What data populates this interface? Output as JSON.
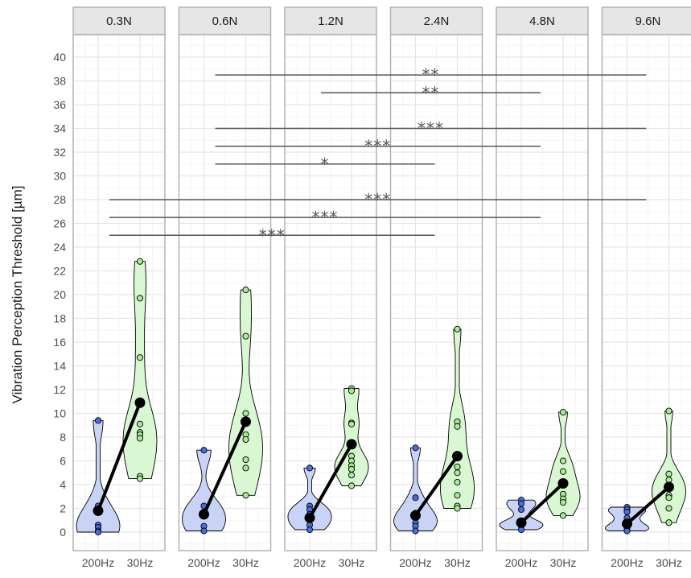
{
  "chart_data": {
    "type": "violin",
    "ylabel": "Vibration Perception Threshold [µm]",
    "ylim": [
      -1.5,
      43
    ],
    "yticks": [
      0,
      2,
      4,
      6,
      8,
      10,
      12,
      14,
      16,
      18,
      20,
      22,
      24,
      26,
      28,
      30,
      32,
      34,
      36,
      38,
      40
    ],
    "categories": [
      "200Hz",
      "30Hz"
    ],
    "grid": true,
    "colors": {
      "200Hz_fill": "#c9d3f5",
      "200Hz_point": "#4a6ee0",
      "30Hz_fill": "#d9f7d2",
      "30Hz_point": "#a6ec96",
      "mean": "#000000",
      "significance": "#555555",
      "strip_bg": "#e6e6e6",
      "strip_border": "#b3b3b3"
    },
    "panels": [
      {
        "label": "0.3N",
        "points_200Hz": [
          9.4,
          2.2,
          0.6,
          0.4,
          0.1,
          0.0
        ],
        "mean_200Hz": 1.8,
        "points_30Hz": [
          22.8,
          19.7,
          14.7,
          9.1,
          8.4,
          8.2,
          7.9,
          4.7,
          4.5
        ],
        "mean_30Hz": 10.9
      },
      {
        "label": "0.6N",
        "points_200Hz": [
          6.9,
          2.2,
          1.7,
          0.5,
          0.1
        ],
        "mean_200Hz": 1.5,
        "points_30Hz": [
          20.4,
          16.5,
          10.0,
          8.2,
          7.8,
          6.1,
          5.4,
          3.1
        ],
        "mean_30Hz": 9.3
      },
      {
        "label": "1.2N",
        "points_200Hz": [
          5.4,
          2.2,
          1.9,
          1.5,
          1.0,
          0.6,
          0.2
        ],
        "mean_200Hz": 1.2,
        "points_30Hz": [
          12.1,
          11.9,
          9.2,
          9.1,
          6.4,
          6.0,
          5.6,
          5.3,
          4.8,
          3.9
        ],
        "mean_30Hz": 7.4
      },
      {
        "label": "2.4N",
        "points_200Hz": [
          7.1,
          2.9,
          1.6,
          1.3,
          0.8,
          0.5,
          0.1
        ],
        "mean_200Hz": 1.4,
        "points_30Hz": [
          17.1,
          9.3,
          8.9,
          5.5,
          5.0,
          4.2,
          3.1,
          2.2,
          2.0
        ],
        "mean_30Hz": 6.4
      },
      {
        "label": "4.8N",
        "points_200Hz": [
          2.7,
          2.4,
          1.9,
          0.9,
          0.7,
          0.5,
          0.2
        ],
        "mean_200Hz": 0.8,
        "points_30Hz": [
          10.1,
          6.0,
          5.1,
          4.1,
          3.2,
          2.8,
          2.5,
          1.4
        ],
        "mean_30Hz": 4.1
      },
      {
        "label": "9.6N",
        "points_200Hz": [
          2.1,
          1.9,
          1.7,
          1.2,
          0.7,
          0.4,
          0.2,
          0.1
        ],
        "mean_200Hz": 0.7,
        "points_30Hz": [
          10.2,
          4.9,
          4.4,
          3.7,
          3.1,
          2.9,
          2.0,
          0.8
        ],
        "mean_30Hz": 3.8
      }
    ],
    "significance": [
      {
        "from": "0.6N",
        "to": "9.6N",
        "y": 38.5,
        "label": "**"
      },
      {
        "from": "1.2N",
        "to": "4.8N",
        "y": 37.0,
        "label": "**"
      },
      {
        "from": "0.6N",
        "to": "9.6N",
        "y": 34.0,
        "label": "***"
      },
      {
        "from": "0.6N",
        "to": "4.8N",
        "y": 32.5,
        "label": "***"
      },
      {
        "from": "0.6N",
        "to": "2.4N",
        "y": 31.0,
        "label": "*"
      },
      {
        "from": "0.3N",
        "to": "9.6N",
        "y": 28.0,
        "label": "***"
      },
      {
        "from": "0.3N",
        "to": "4.8N",
        "y": 26.5,
        "label": "***"
      },
      {
        "from": "0.3N",
        "to": "2.4N",
        "y": 25.0,
        "label": "***"
      }
    ]
  }
}
